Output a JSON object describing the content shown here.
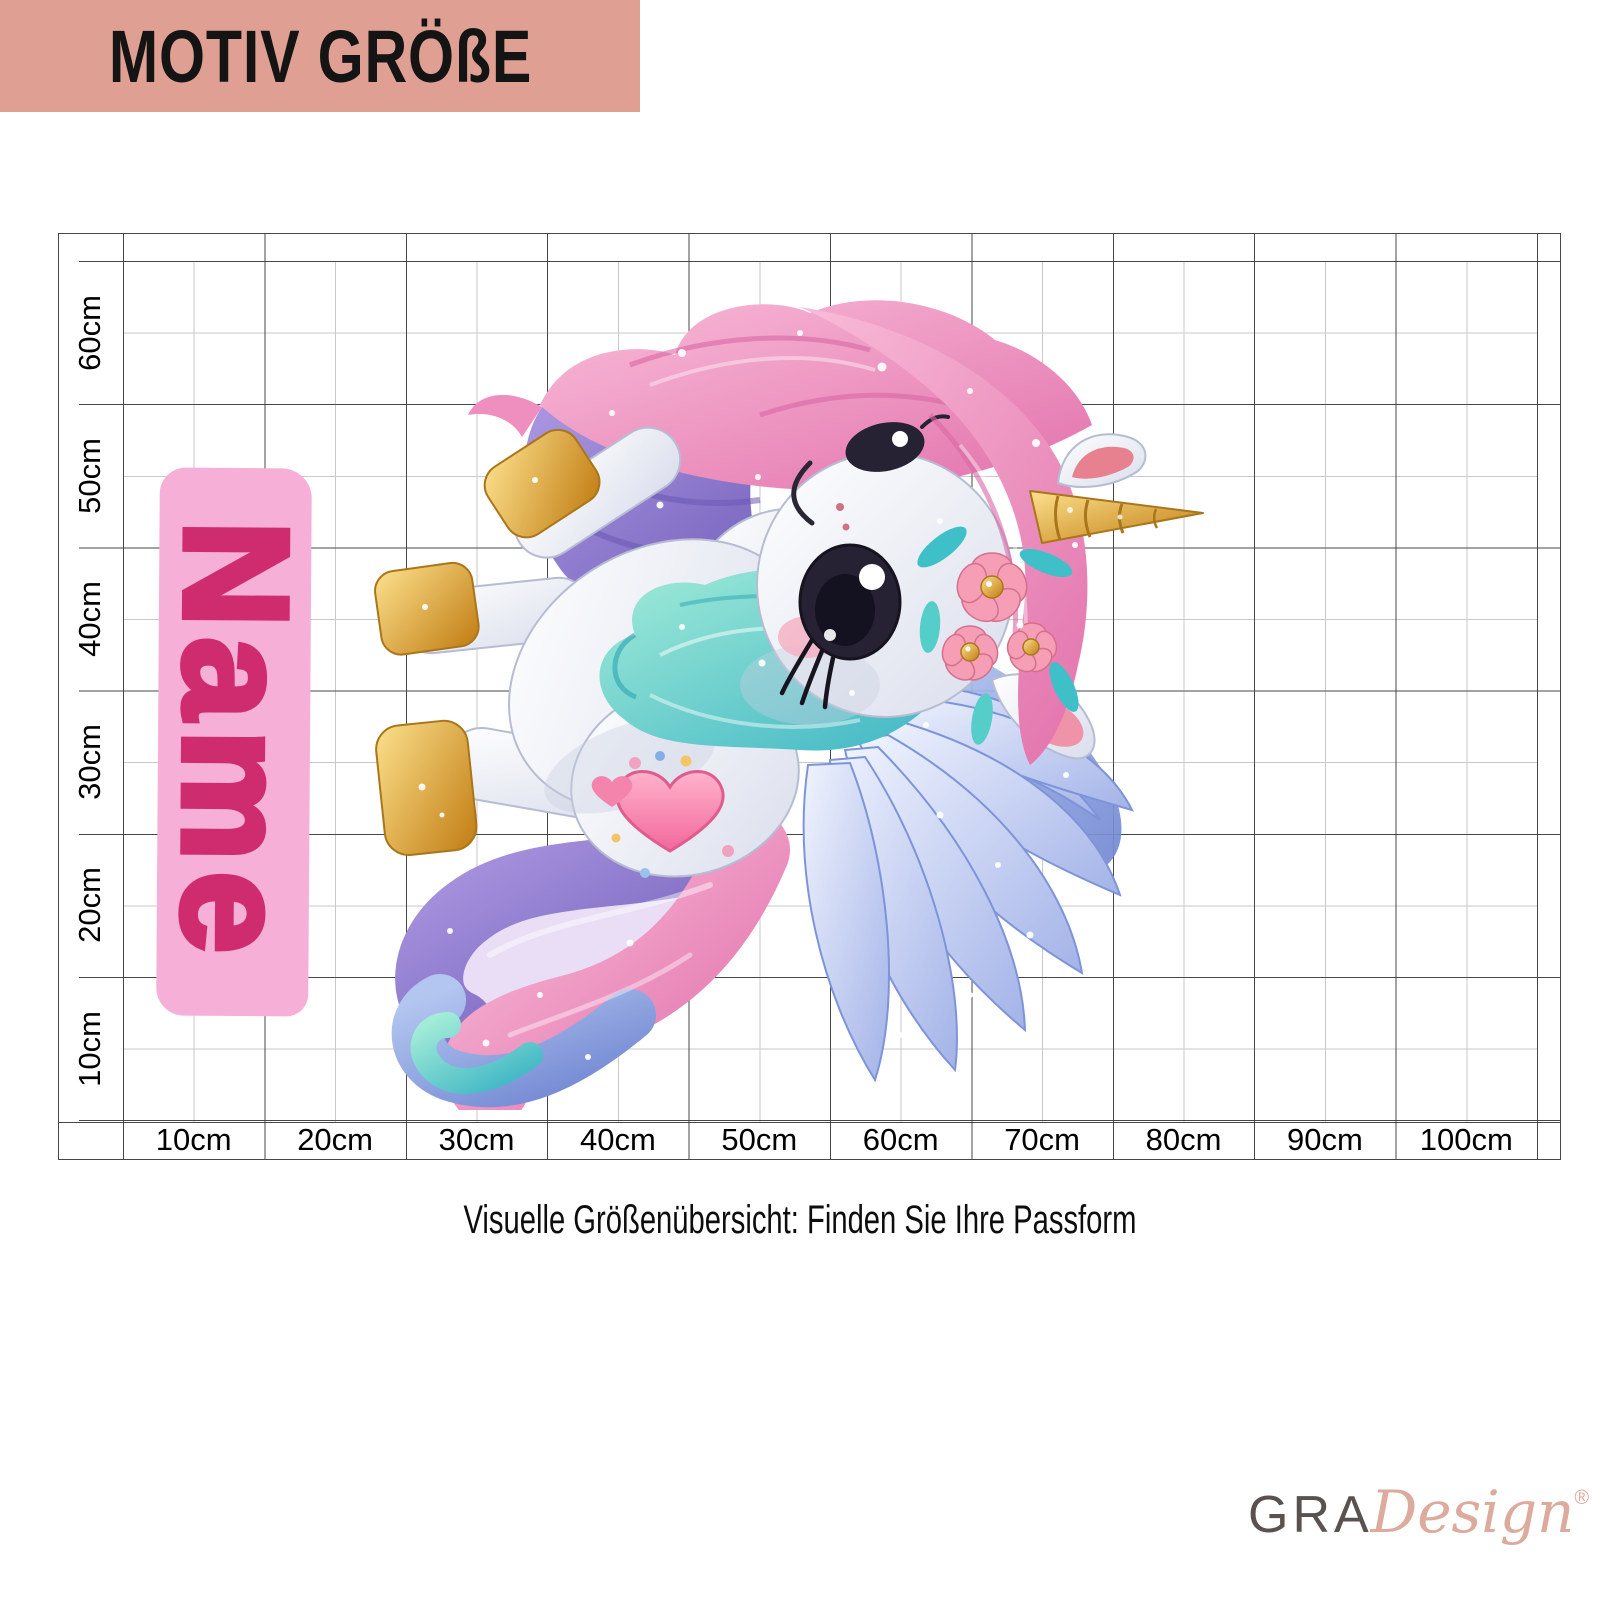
{
  "header": {
    "title": "MOTIV GRÖßE"
  },
  "size_chart": {
    "x_axis_labels": [
      "10cm",
      "20cm",
      "30cm",
      "40cm",
      "50cm",
      "60cm",
      "70cm",
      "80cm",
      "90cm",
      "100cm"
    ],
    "y_axis_labels": [
      "60cm",
      "50cm",
      "40cm",
      "30cm",
      "20cm",
      "10cm"
    ]
  },
  "name_banner": {
    "label": "Name"
  },
  "caption": {
    "text": "Visuelle Größenübersicht: Finden Sie Ihre Passform"
  },
  "logo": {
    "prefix": "GRA",
    "suffix": "Design",
    "registered": "®"
  },
  "illustration": {
    "alt": "Watercolor cartoon unicorn pegasus with pink mane, golden horn and hooves, flower crown, blue glitter wings, heart mark and pastel swirl tail"
  },
  "colors": {
    "header_bg": "#dfa093",
    "banner_pink": "#f6afd6",
    "name_text": "#cf2c6f",
    "grid_major": "#474747",
    "grid_minor": "#c9c9c9",
    "logo_gray": "#5a524f",
    "logo_rose": "#dcab9e"
  }
}
